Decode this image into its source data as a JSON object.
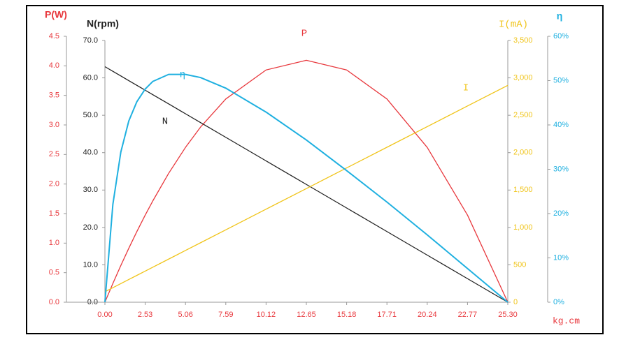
{
  "chart_data": {
    "type": "line",
    "x": [
      0,
      0.5,
      1,
      1.5,
      2,
      2.53,
      3,
      4,
      5.06,
      6,
      7.59,
      10.12,
      12.65,
      15.18,
      17.71,
      20.24,
      22.77,
      25.3
    ],
    "xlim": [
      0,
      25.3
    ],
    "xticks": [
      {
        "value": 0,
        "label": "0.00"
      },
      2.53,
      5.06,
      7.59,
      10.12,
      12.65,
      15.18,
      17.71,
      20.24,
      22.77,
      {
        "value": 25.3,
        "label": "25.30"
      }
    ],
    "xlabel": "kg.cm",
    "y_axes": [
      {
        "title": "P(W)",
        "color": "#e8383d",
        "ylim": [
          0,
          4.5
        ],
        "yticks": [
          {
            "value": 0,
            "label": "0.0"
          },
          0.5,
          {
            "value": 1,
            "label": "1.0"
          },
          1.5,
          {
            "value": 2,
            "label": "2.0"
          },
          2.5,
          {
            "value": 3,
            "label": "3.0"
          },
          3.5,
          {
            "value": 4,
            "label": "4.0"
          },
          4.5
        ]
      },
      {
        "title": "N(rpm)",
        "color": "#222222",
        "ylim": [
          0,
          70
        ],
        "yticks": [
          {
            "value": 0,
            "label": "0.0"
          },
          {
            "value": 10,
            "label": "10.0"
          },
          {
            "value": 20,
            "label": "20.0"
          },
          {
            "value": 30,
            "label": "30.0"
          },
          {
            "value": 40,
            "label": "40.0"
          },
          {
            "value": 50,
            "label": "50.0"
          },
          {
            "value": 60,
            "label": "60.0"
          },
          {
            "value": 70,
            "label": "70.0"
          }
        ]
      },
      {
        "title": "I(mA)",
        "color": "#f0c419",
        "ylim": [
          0,
          3500
        ],
        "yticks": [
          0,
          500,
          {
            "value": 1000,
            "label": "1,000"
          },
          {
            "value": 1500,
            "label": "1,500"
          },
          {
            "value": 2000,
            "label": "2,000"
          },
          {
            "value": 2500,
            "label": "2,500"
          },
          {
            "value": 3000,
            "label": "3,000"
          },
          {
            "value": 3500,
            "label": "3,500"
          }
        ]
      },
      {
        "title": "η",
        "color": "#1fb0e0",
        "ylim": [
          0,
          60
        ],
        "yticks": [
          {
            "value": 0,
            "label": "0%"
          },
          {
            "value": 10,
            "label": "10%"
          },
          {
            "value": 20,
            "label": "20%"
          },
          {
            "value": 30,
            "label": "30%"
          },
          {
            "value": 40,
            "label": "40%"
          },
          {
            "value": 50,
            "label": "50%"
          },
          {
            "value": 60,
            "label": "60%"
          }
        ]
      }
    ],
    "series": [
      {
        "name": "P",
        "color": "#e8383d",
        "axis": 0,
        "values": [
          0,
          0.317,
          0.622,
          0.913,
          1.192,
          1.474,
          1.711,
          2.18,
          2.62,
          2.962,
          3.439,
          3.93,
          4.094,
          3.93,
          3.439,
          2.62,
          1.474,
          0
        ]
      },
      {
        "name": "N",
        "color": "#222222",
        "axis": 1,
        "values": [
          63,
          61.76,
          60.51,
          59.26,
          58.02,
          56.7,
          55.53,
          53.04,
          50.4,
          48.06,
          44.1,
          37.8,
          31.5,
          25.2,
          18.9,
          12.6,
          6.3,
          0
        ]
      },
      {
        "name": "I",
        "color": "#f0c419",
        "axis": 2,
        "values": [
          140,
          194.5,
          249.1,
          303.6,
          358.2,
          416,
          467.3,
          576.4,
          692,
          794.6,
          968,
          1244,
          1520,
          1796,
          2072,
          2348,
          2624,
          2900
        ]
      },
      {
        "name": "η",
        "color": "#1fb0e0",
        "axis": 3,
        "values": [
          0,
          22.1,
          33.9,
          40.9,
          45.2,
          48.1,
          49.8,
          51.4,
          51.4,
          50.7,
          48.3,
          42.9,
          36.6,
          29.7,
          22.6,
          15.2,
          7.6,
          0
        ]
      }
    ]
  }
}
